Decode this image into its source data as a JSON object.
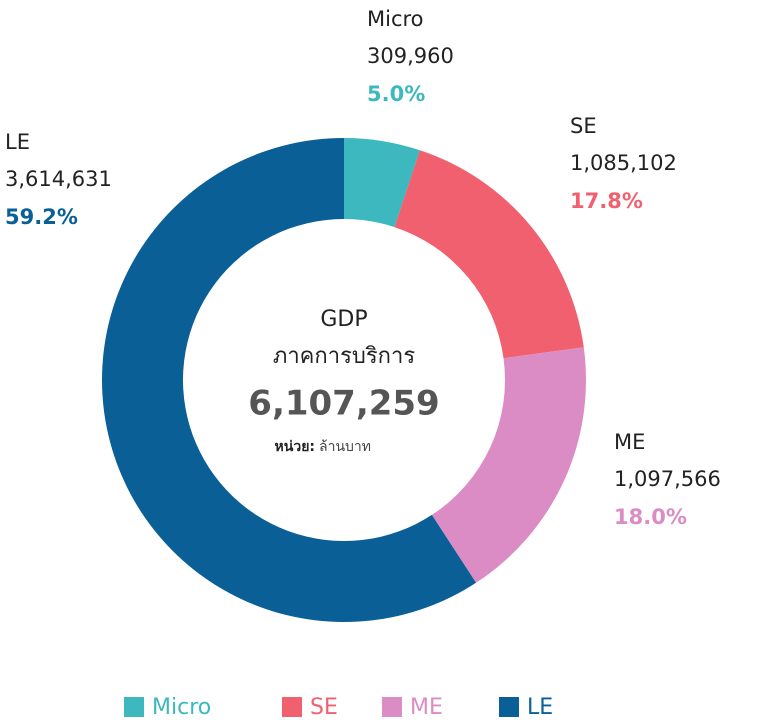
{
  "chart_data": {
    "type": "donut",
    "categories": [
      "Micro",
      "SE",
      "ME",
      "LE"
    ],
    "values": [
      309960,
      1085102,
      1097566,
      3614631
    ],
    "value_labels": [
      "309,960",
      "1,085,102",
      "1,097,566",
      "3,614,631"
    ],
    "percentages": [
      5.0,
      17.8,
      18.0,
      59.2
    ],
    "percentage_labels": [
      "5.0%",
      "17.8%",
      "18.0%",
      "59.2%"
    ],
    "colors": [
      "#3cb8be",
      "#f0606e",
      "#dc8cc4",
      "#0a5f96"
    ],
    "center_title": "GDP",
    "center_subtitle": "ภาคการบริการ",
    "total": 6107259,
    "total_label": "6,107,259",
    "unit_label": "หน่วย:",
    "unit": "ล้านบาท"
  }
}
